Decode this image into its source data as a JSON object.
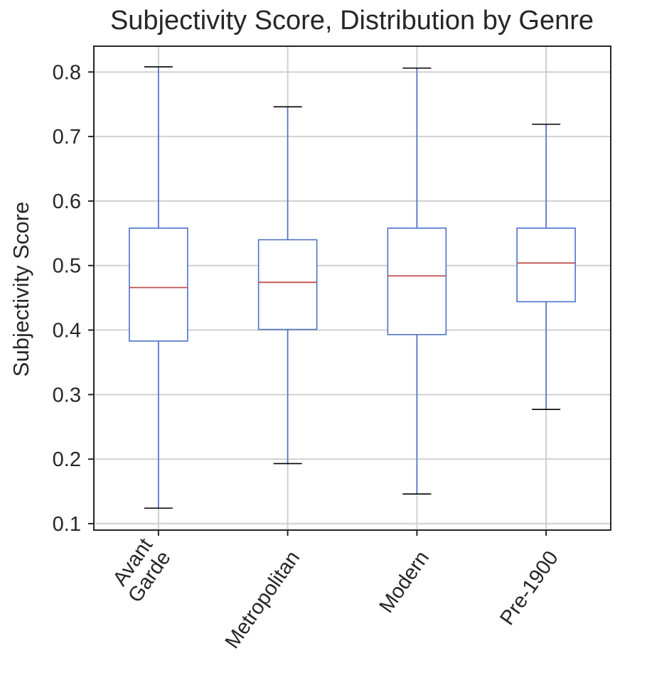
{
  "chart_data": {
    "type": "box",
    "title": "Subjectivity Score, Distribution by Genre",
    "xlabel": "",
    "ylabel": "Subjectivity Score",
    "ylim": [
      0.09,
      0.84
    ],
    "yticks": [
      "0.1",
      "0.2",
      "0.3",
      "0.4",
      "0.5",
      "0.6",
      "0.7",
      "0.8"
    ],
    "grid": true,
    "categories": [
      [
        "Avant",
        "Garde"
      ],
      [
        "Metropolitan"
      ],
      [
        "Modern"
      ],
      [
        "Pre-1900"
      ]
    ],
    "boxes": [
      {
        "whisker_low": 0.124,
        "q1": 0.383,
        "median": 0.466,
        "q3": 0.558,
        "whisker_high": 0.808
      },
      {
        "whisker_low": 0.193,
        "q1": 0.401,
        "median": 0.474,
        "q3": 0.54,
        "whisker_high": 0.746
      },
      {
        "whisker_low": 0.146,
        "q1": 0.393,
        "median": 0.484,
        "q3": 0.558,
        "whisker_high": 0.806
      },
      {
        "whisker_low": 0.277,
        "q1": 0.444,
        "median": 0.504,
        "q3": 0.558,
        "whisker_high": 0.719
      }
    ],
    "colors": {
      "box": "#4c72c8",
      "median": "#c0504d",
      "cap": "#000000",
      "grid": "#d0d0d0",
      "frame": "#262626"
    }
  }
}
